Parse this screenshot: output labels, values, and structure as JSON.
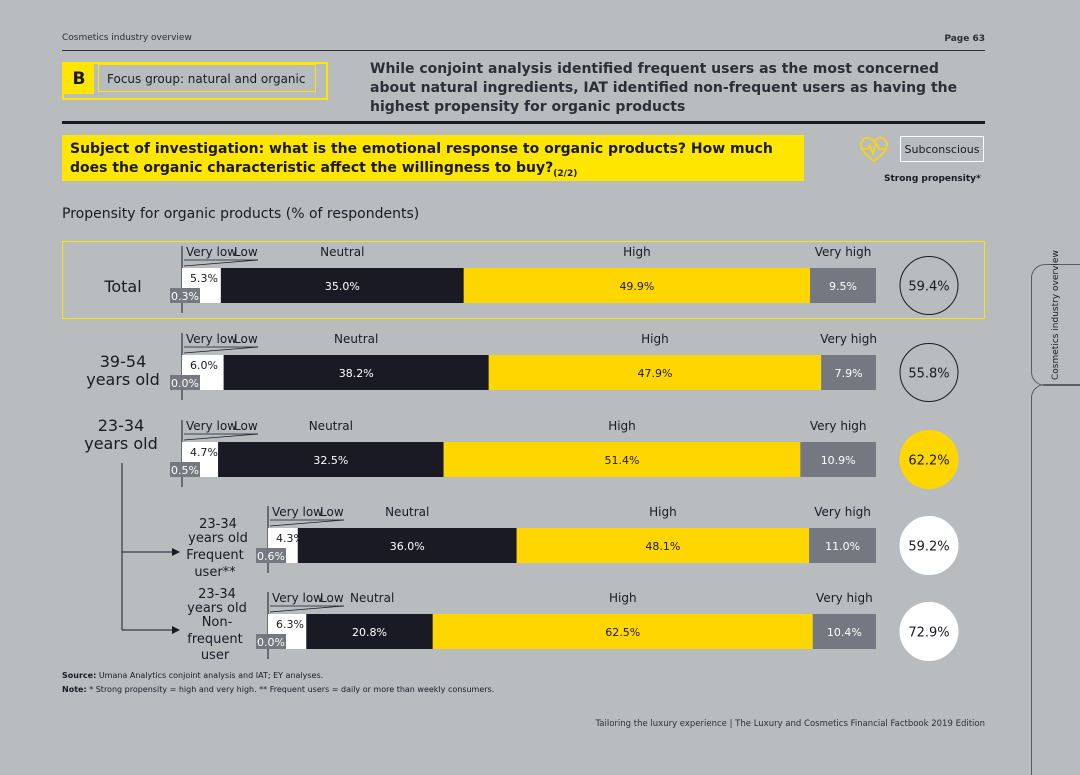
{
  "header": {
    "section_name": "Cosmetics industry overview",
    "page": "Page 63"
  },
  "section": {
    "letter": "B",
    "title": "Focus group: natural and organic"
  },
  "headline": "While conjoint analysis identified frequent users as the most concerned about natural ingredients, IAT identified non-frequent users as having the highest propensity for organic products",
  "subject": {
    "text": "Subject of investigation: what is the emotional response to organic products? How much does the organic characteristic affect the willingness to buy?",
    "suffix": "(2/2)"
  },
  "badge": {
    "label": "Subconscious",
    "caption": "Strong propensity*"
  },
  "colors": {
    "very_low": "#ffffff",
    "low": "#ffffff",
    "neutral": "#1a1a24",
    "high": "#ffd600",
    "very_high": "#747880",
    "background": "#b8bcbf",
    "accent": "#ffe600"
  },
  "chart_data": {
    "type": "bar",
    "orientation": "horizontal-stacked",
    "title": "Propensity for organic products",
    "title_suffix": "(% of respondents)",
    "categories": [
      "Very low",
      "Low",
      "Neutral",
      "High",
      "Very high"
    ],
    "rows": [
      {
        "label": "Total",
        "very_low": 0.3,
        "low": 5.3,
        "neutral": 35.0,
        "high": 49.9,
        "very_high": 9.5,
        "strong_propensity": 59.4,
        "circle": "outline"
      },
      {
        "label": "39-54 years old",
        "very_low": 0.0,
        "low": 6.0,
        "neutral": 38.2,
        "high": 47.9,
        "very_high": 7.9,
        "strong_propensity": 55.8,
        "circle": "outline"
      },
      {
        "label": "23-34 years old",
        "very_low": 0.5,
        "low": 4.7,
        "neutral": 32.5,
        "high": 51.4,
        "very_high": 10.9,
        "strong_propensity": 62.2,
        "circle": "yellow"
      },
      {
        "label": "23-34 years old Frequent user**",
        "very_low": 0.6,
        "low": 4.3,
        "neutral": 36.0,
        "high": 48.1,
        "very_high": 11.0,
        "strong_propensity": 59.2,
        "circle": "white"
      },
      {
        "label": "23-34 years old Non-frequent user",
        "very_low": 0.0,
        "low": 6.3,
        "neutral": 20.8,
        "high": 62.5,
        "very_high": 10.4,
        "strong_propensity": 72.9,
        "circle": "white"
      }
    ]
  },
  "source": {
    "label": "Source:",
    "text": "Umana Analytics conjoint analysis and IAT; EY analyses."
  },
  "note": {
    "label": "Note:",
    "text": "* Strong propensity = high and very high. ** Frequent users = daily or more than weekly consumers."
  },
  "footer": "Tailoring the luxury experience | The Luxury and Cosmetics Financial Factbook 2019 Edition",
  "side_tab": "Cosmetics industry overview"
}
